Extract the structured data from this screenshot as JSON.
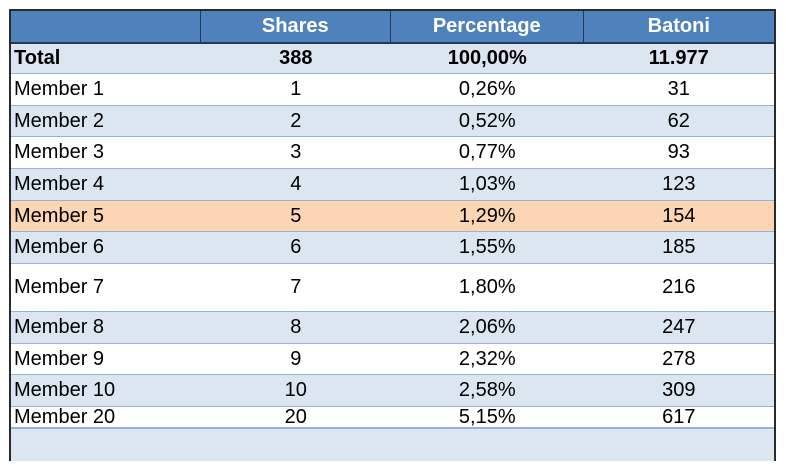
{
  "table": {
    "headers": {
      "name": "",
      "shares": "Shares",
      "percentage": "Percentage",
      "batoni": "Batoni"
    },
    "total": {
      "name": "Total",
      "shares": "388",
      "percentage": "100,00%",
      "batoni": "11.977"
    },
    "rows": [
      {
        "name": "Member 1",
        "shares": "1",
        "percentage": "0,26%",
        "batoni": "31"
      },
      {
        "name": "Member 2",
        "shares": "2",
        "percentage": "0,52%",
        "batoni": "62"
      },
      {
        "name": "Member 3",
        "shares": "3",
        "percentage": "0,77%",
        "batoni": "93"
      },
      {
        "name": "Member 4",
        "shares": "4",
        "percentage": "1,03%",
        "batoni": "123"
      },
      {
        "name": "Member 5",
        "shares": "5",
        "percentage": "1,29%",
        "batoni": "154"
      },
      {
        "name": "Member 6",
        "shares": "6",
        "percentage": "1,55%",
        "batoni": "185"
      },
      {
        "name": "Member 7",
        "shares": "7",
        "percentage": "1,80%",
        "batoni": "216"
      },
      {
        "name": "Member 8",
        "shares": "8",
        "percentage": "2,06%",
        "batoni": "247"
      },
      {
        "name": "Member 9",
        "shares": "9",
        "percentage": "2,32%",
        "batoni": "278"
      },
      {
        "name": "Member 10",
        "shares": "10",
        "percentage": "2,58%",
        "batoni": "309"
      },
      {
        "name": "Member 20",
        "shares": "20",
        "percentage": "5,15%",
        "batoni": "617"
      }
    ],
    "highlighted_row": "Member 5"
  },
  "colors": {
    "header_bg": "#4f81bd",
    "header_text": "#ffffff",
    "band": "#dce6f1",
    "highlight": "#fcd5b4"
  }
}
